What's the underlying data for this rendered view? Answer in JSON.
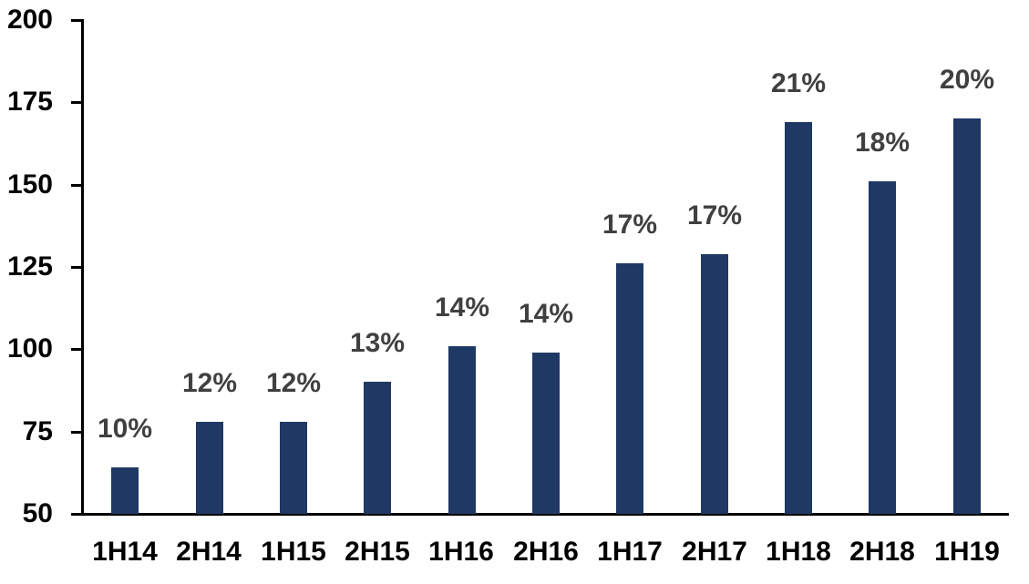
{
  "chart_data": {
    "type": "bar",
    "title": "",
    "xlabel": "",
    "ylabel": "",
    "categories": [
      "1H14",
      "2H14",
      "1H15",
      "2H15",
      "1H16",
      "2H16",
      "1H17",
      "2H17",
      "1H18",
      "2H18",
      "1H19"
    ],
    "values": [
      64,
      78,
      78,
      90,
      101,
      99,
      126,
      129,
      169,
      151,
      170
    ],
    "bar_labels": [
      "10%",
      "12%",
      "12%",
      "13%",
      "14%",
      "14%",
      "17%",
      "17%",
      "21%",
      "18%",
      "20%"
    ],
    "ylim": [
      50,
      200
    ],
    "yticks": [
      50,
      75,
      100,
      125,
      150,
      175,
      200
    ],
    "grid": false,
    "legend": "none",
    "colors": {
      "bar": "#1F3864",
      "bar_label": "#404040",
      "axis": "#000000",
      "tick_label": "#000000",
      "background": "#FFFFFF"
    }
  }
}
